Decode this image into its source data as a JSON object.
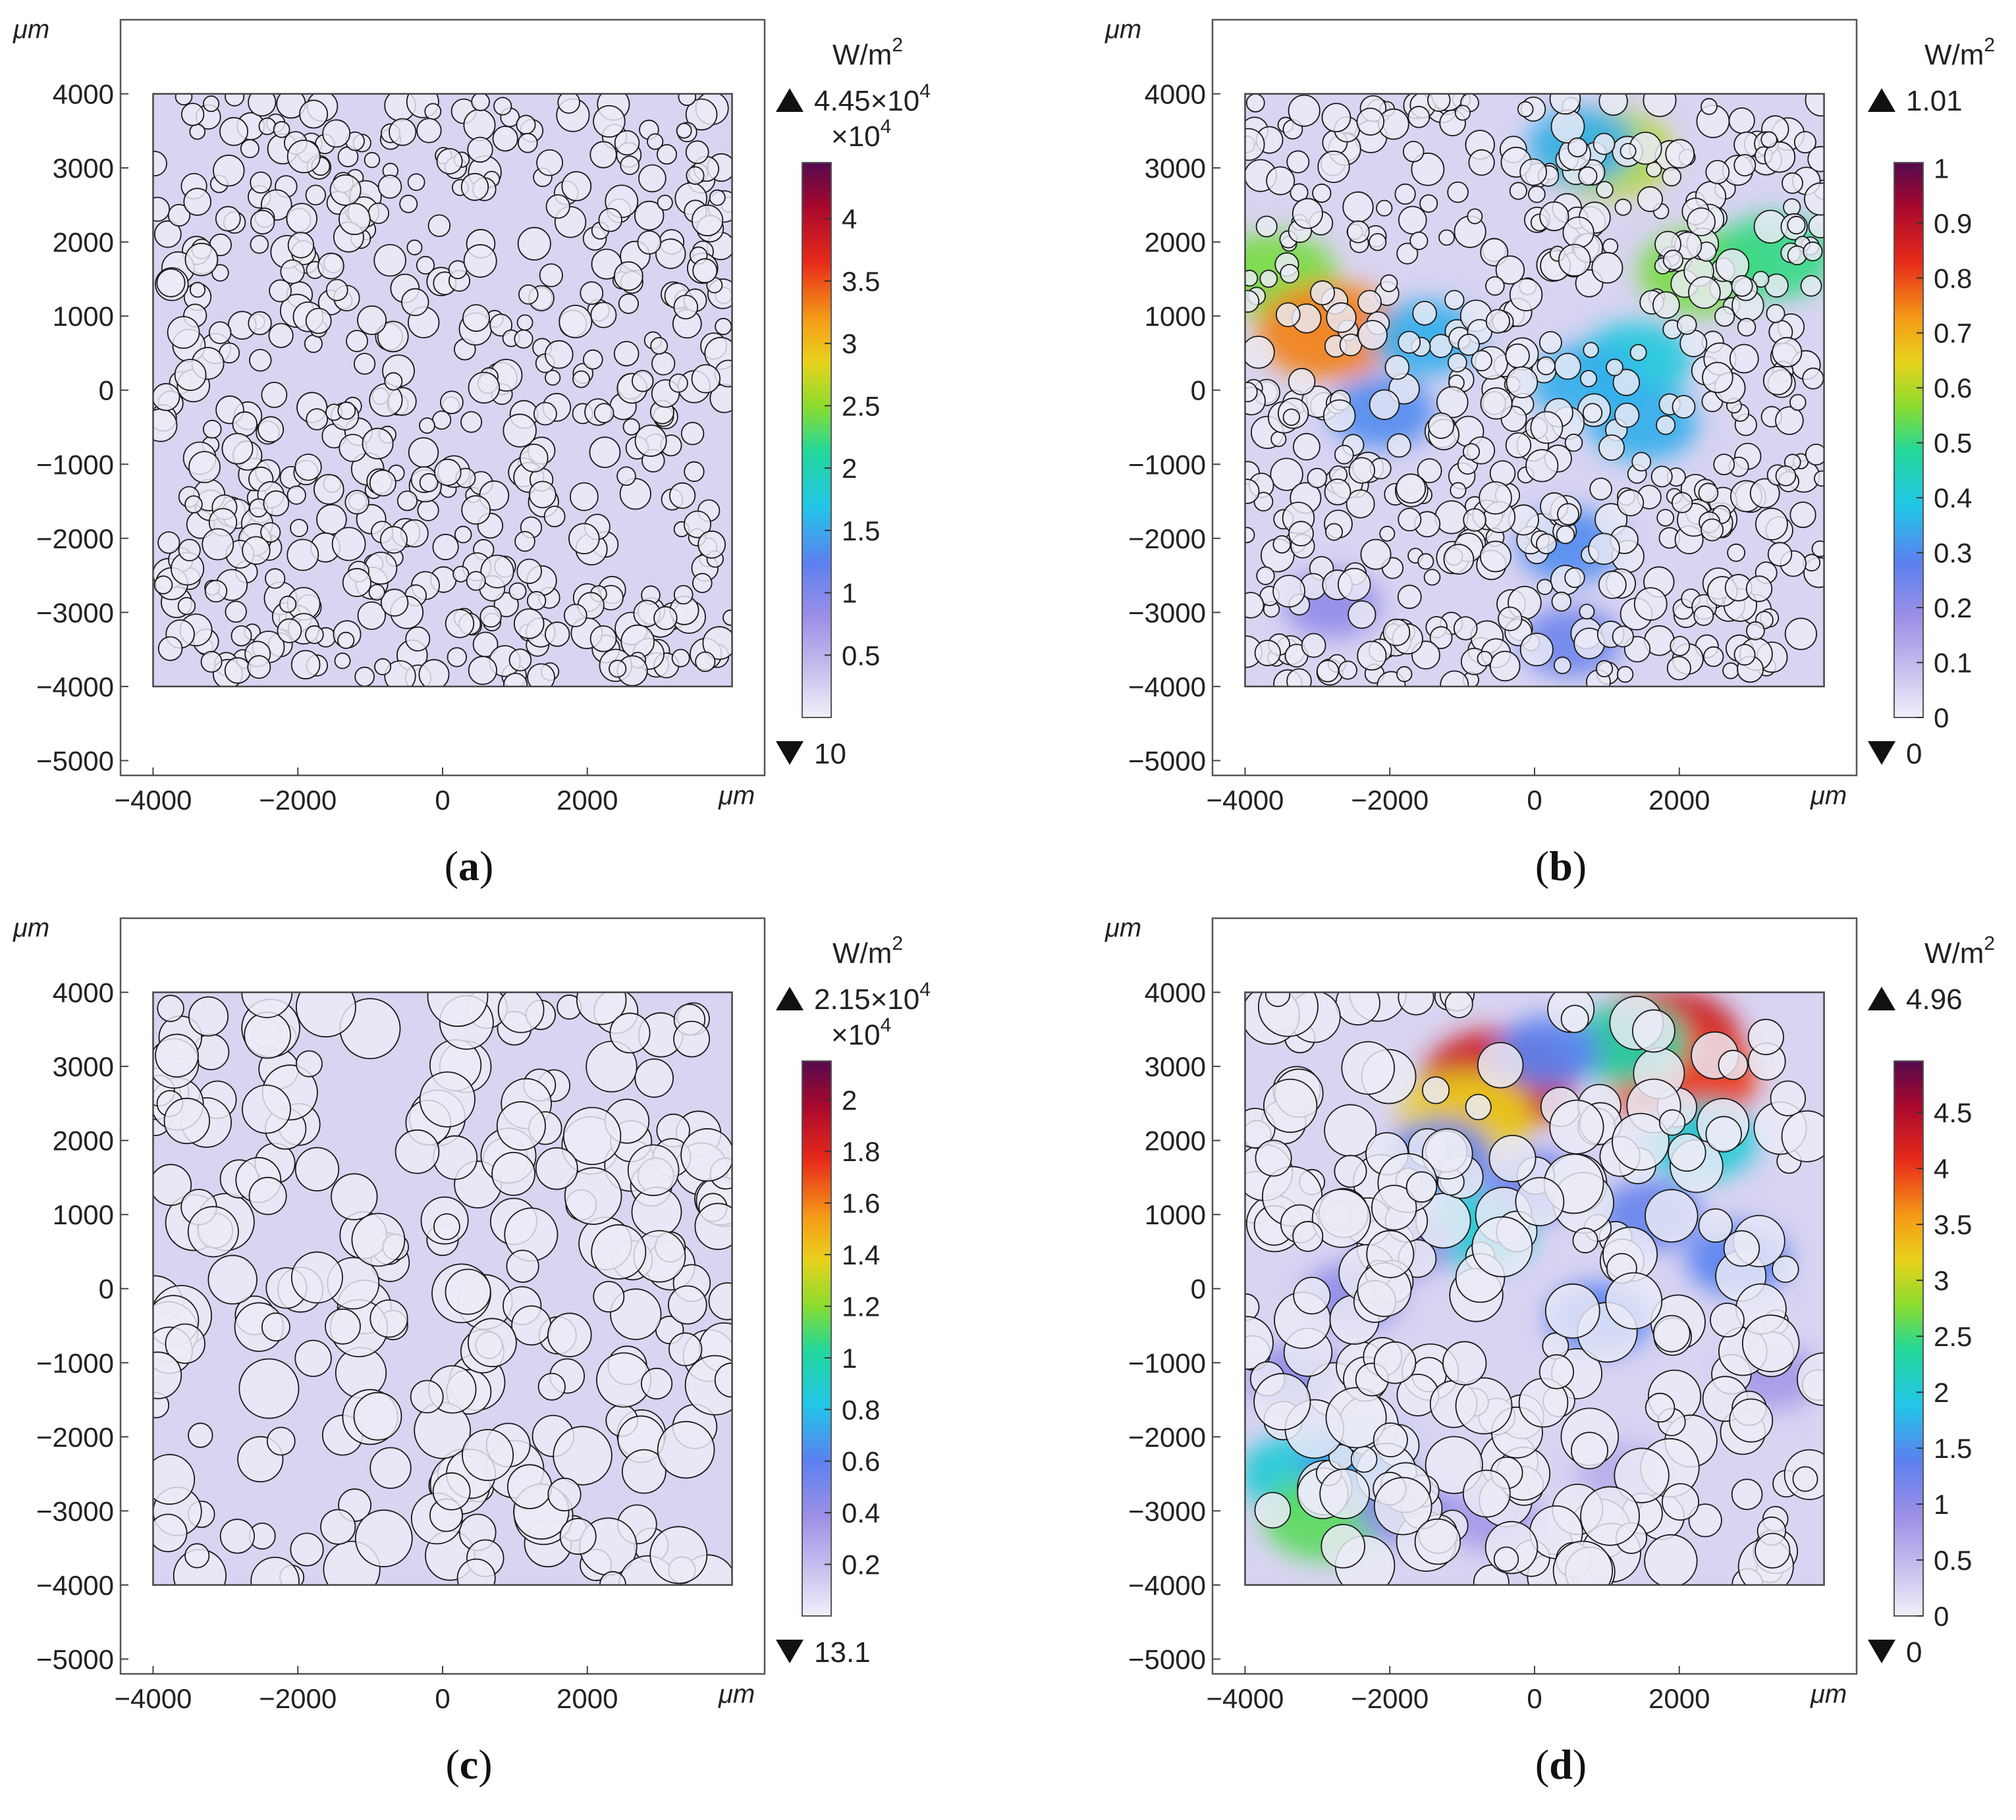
{
  "chart_data": [
    {
      "type": "heatmap",
      "panel_label": "a",
      "x_unit": "μm",
      "y_unit": "μm",
      "xticks": [
        -4000,
        -2000,
        0,
        2000
      ],
      "yticks": [
        4000,
        3000,
        2000,
        1000,
        0,
        -1000,
        -2000,
        -3000,
        -4000,
        -5000
      ],
      "xlim": [
        -4450,
        4450
      ],
      "ylim": [
        -5200,
        5000
      ],
      "domain": {
        "x": [
          -4000,
          4000
        ],
        "y": [
          -4000,
          4000
        ]
      },
      "colorbar": {
        "unit": "W/m",
        "unit_sup": "2",
        "max_label": "4.45×10",
        "max_sup": "4",
        "scale_label": "×10",
        "scale_sup": "4",
        "min_label": "10",
        "range": [
          0,
          4.45
        ],
        "ticks": [
          "4",
          "3.5",
          "3",
          "2.5",
          "2",
          "1.5",
          "1",
          "0.5"
        ]
      },
      "intensity": "low",
      "particle_size": "small",
      "hotspots": []
    },
    {
      "type": "heatmap",
      "panel_label": "b",
      "x_unit": "μm",
      "y_unit": "μm",
      "xticks": [
        -4000,
        -2000,
        0,
        2000
      ],
      "yticks": [
        4000,
        3000,
        2000,
        1000,
        0,
        -1000,
        -2000,
        -3000,
        -4000,
        -5000
      ],
      "xlim": [
        -4450,
        4450
      ],
      "ylim": [
        -5200,
        5000
      ],
      "domain": {
        "x": [
          -4000,
          4000
        ],
        "y": [
          -4000,
          4000
        ]
      },
      "colorbar": {
        "unit": "W/m",
        "unit_sup": "2",
        "max_label": "1.01",
        "max_sup": "",
        "scale_label": "",
        "scale_sup": "",
        "min_label": "0",
        "range": [
          0,
          1.01
        ],
        "ticks": [
          "1",
          "0.9",
          "0.8",
          "0.7",
          "0.6",
          "0.5",
          "0.4",
          "0.3",
          "0.2",
          "0.1",
          "0"
        ]
      },
      "intensity": "network",
      "particle_size": "small",
      "hotspots": [
        {
          "x": -3600,
          "y": 1550,
          "v": 0.55
        },
        {
          "x": -2850,
          "y": 800,
          "v": 0.75
        },
        {
          "x": -1500,
          "y": 700,
          "v": 0.35
        },
        {
          "x": -2100,
          "y": -300,
          "v": 0.3
        },
        {
          "x": 1000,
          "y": 3200,
          "v": 0.6
        },
        {
          "x": 650,
          "y": 3300,
          "v": 0.35
        },
        {
          "x": 1400,
          "y": 400,
          "v": 0.4
        },
        {
          "x": 700,
          "y": 100,
          "v": 0.35
        },
        {
          "x": 1500,
          "y": -450,
          "v": 0.35
        },
        {
          "x": 2300,
          "y": 1600,
          "v": 0.55
        },
        {
          "x": 3300,
          "y": 1800,
          "v": 0.5
        },
        {
          "x": 500,
          "y": -2100,
          "v": 0.3
        },
        {
          "x": 500,
          "y": -3400,
          "v": 0.25
        },
        {
          "x": -2800,
          "y": -2900,
          "v": 0.2
        }
      ]
    },
    {
      "type": "heatmap",
      "panel_label": "c",
      "x_unit": "μm",
      "y_unit": "μm",
      "xticks": [
        -4000,
        -2000,
        0,
        2000
      ],
      "yticks": [
        4000,
        3000,
        2000,
        1000,
        0,
        -1000,
        -2000,
        -3000,
        -4000,
        -5000
      ],
      "xlim": [
        -4450,
        4450
      ],
      "ylim": [
        -5200,
        5000
      ],
      "domain": {
        "x": [
          -4000,
          4000
        ],
        "y": [
          -4000,
          4000
        ]
      },
      "colorbar": {
        "unit": "W/m",
        "unit_sup": "2",
        "max_label": "2.15×10",
        "max_sup": "4",
        "scale_label": "×10",
        "scale_sup": "4",
        "min_label": "13.1",
        "range": [
          0,
          2.15
        ],
        "ticks": [
          "2",
          "1.8",
          "1.6",
          "1.4",
          "1.2",
          "1",
          "0.8",
          "0.6",
          "0.4",
          "0.2"
        ]
      },
      "intensity": "low",
      "particle_size": "large",
      "hotspots": []
    },
    {
      "type": "heatmap",
      "panel_label": "d",
      "x_unit": "μm",
      "y_unit": "μm",
      "xticks": [
        -4000,
        -2000,
        0,
        2000
      ],
      "yticks": [
        4000,
        3000,
        2000,
        1000,
        0,
        -1000,
        -2000,
        -3000,
        -4000,
        -5000
      ],
      "xlim": [
        -4450,
        4450
      ],
      "ylim": [
        -5200,
        5000
      ],
      "domain": {
        "x": [
          -4000,
          4000
        ],
        "y": [
          -4000,
          4000
        ]
      },
      "colorbar": {
        "unit": "W/m",
        "unit_sup": "2",
        "max_label": "4.96",
        "max_sup": "",
        "scale_label": "",
        "scale_sup": "",
        "min_label": "0",
        "range": [
          0,
          4.96
        ],
        "ticks": [
          "4.5",
          "4",
          "3.5",
          "3",
          "2.5",
          "2",
          "1.5",
          "1",
          "0.5",
          "0"
        ]
      },
      "intensity": "network",
      "particle_size": "large",
      "hotspots": [
        {
          "x": -500,
          "y": 2800,
          "v": 4.3
        },
        {
          "x": -950,
          "y": 2300,
          "v": 3.2
        },
        {
          "x": 1800,
          "y": 3350,
          "v": 4.3
        },
        {
          "x": 2050,
          "y": 2850,
          "v": 4.0
        },
        {
          "x": 1300,
          "y": 3300,
          "v": 2.3
        },
        {
          "x": 200,
          "y": 3200,
          "v": 1.4
        },
        {
          "x": 2300,
          "y": 2000,
          "v": 2.0
        },
        {
          "x": -1300,
          "y": 1800,
          "v": 1.4
        },
        {
          "x": -800,
          "y": 800,
          "v": 2.0
        },
        {
          "x": 0,
          "y": 1400,
          "v": 1.2
        },
        {
          "x": 1600,
          "y": 1000,
          "v": 1.3
        },
        {
          "x": 2800,
          "y": 400,
          "v": 1.4
        },
        {
          "x": 900,
          "y": -400,
          "v": 1.4
        },
        {
          "x": -2500,
          "y": -100,
          "v": 1.0
        },
        {
          "x": -3300,
          "y": -1200,
          "v": 1.0
        },
        {
          "x": -3300,
          "y": -2500,
          "v": 2.0
        },
        {
          "x": -2900,
          "y": -3100,
          "v": 2.6
        },
        {
          "x": -2500,
          "y": -2300,
          "v": 1.6
        },
        {
          "x": -1800,
          "y": -3000,
          "v": 1.0
        },
        {
          "x": -600,
          "y": -3100,
          "v": 0.8
        },
        {
          "x": 1200,
          "y": -2500,
          "v": 0.6
        },
        {
          "x": 3300,
          "y": -1200,
          "v": 0.8
        },
        {
          "x": -1800,
          "y": 600,
          "v": 0.9
        }
      ]
    }
  ]
}
